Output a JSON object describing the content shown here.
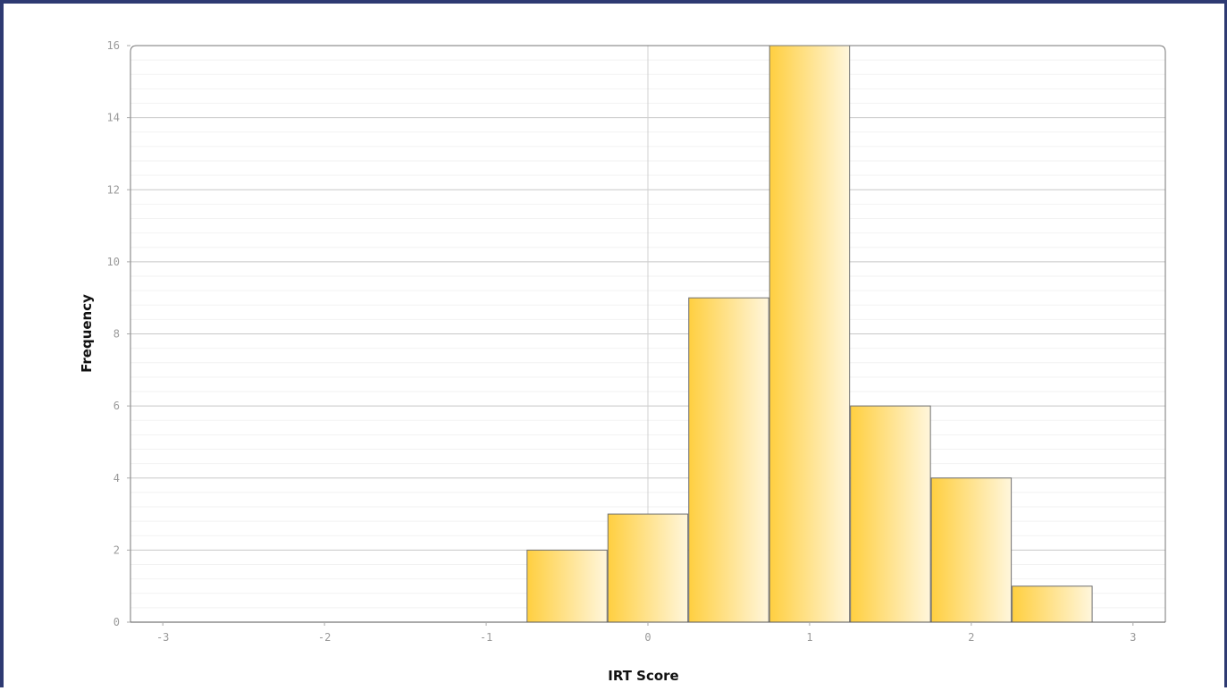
{
  "chart_data": {
    "type": "bar",
    "title": "",
    "xlabel": "IRT Score",
    "ylabel": "Frequency",
    "xlim": [
      -3.2,
      3.2
    ],
    "ylim": [
      0,
      16
    ],
    "x_ticks": [
      -3,
      -2,
      -1,
      0,
      1,
      2,
      3
    ],
    "y_ticks": [
      0,
      2,
      4,
      6,
      8,
      10,
      12,
      14,
      16
    ],
    "bin_width": 0.5,
    "bins": [
      {
        "x_start": -0.75,
        "x_end": -0.25,
        "value": 2
      },
      {
        "x_start": -0.25,
        "x_end": 0.25,
        "value": 3
      },
      {
        "x_start": 0.25,
        "x_end": 0.75,
        "value": 9
      },
      {
        "x_start": 0.75,
        "x_end": 1.25,
        "value": 16
      },
      {
        "x_start": 1.25,
        "x_end": 1.75,
        "value": 6
      },
      {
        "x_start": 1.75,
        "x_end": 2.25,
        "value": 4
      },
      {
        "x_start": 2.25,
        "x_end": 2.75,
        "value": 1
      }
    ],
    "grid": true,
    "legend": "none",
    "colors": {
      "bar_fill_start": "#ffcf40",
      "bar_fill_end": "#fff6dc",
      "bar_stroke": "#707070",
      "grid_major": "#c8c8c8",
      "grid_minor": "#f2f2f2",
      "zero_line": "#d0d0d0",
      "frame_border": "#2e3a72"
    }
  }
}
